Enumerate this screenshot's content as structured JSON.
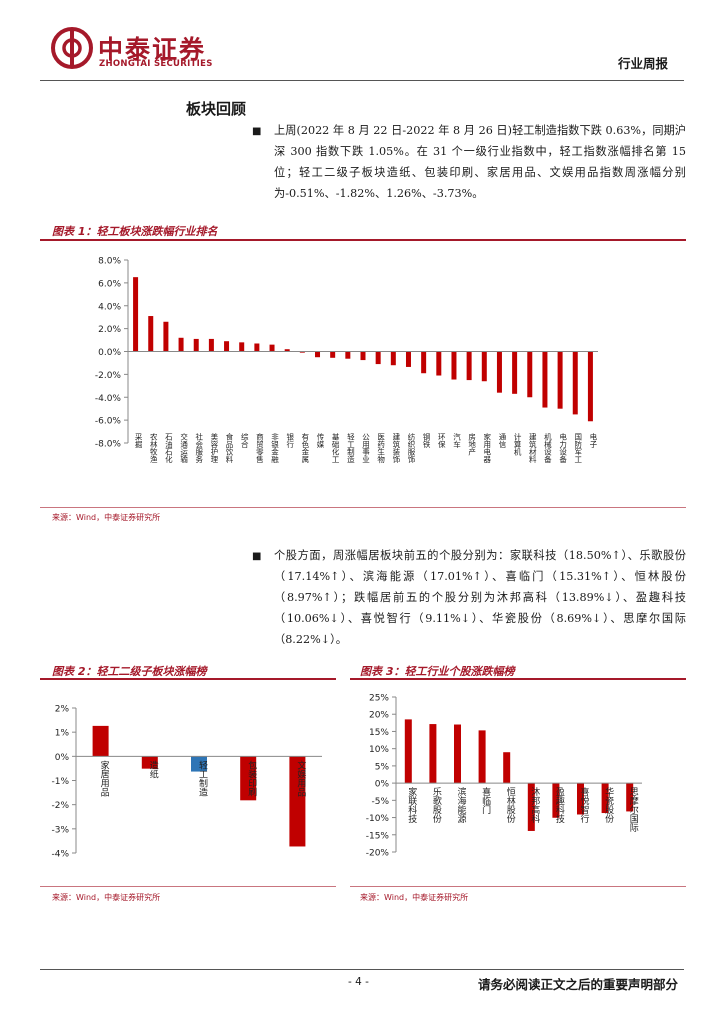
{
  "header": {
    "company_cn": "中泰证券",
    "company_en": "ZHONGTAI SECURITIES",
    "doc_type": "行业周报"
  },
  "section_title": "板块回顾",
  "paragraphs": {
    "p1": "上周(2022 年 8 月 22 日-2022 年 8 月 26 日)轻工制造指数下跌 0.63%，同期沪深 300 指数下跌 1.05%。在 31 个一级行业指数中，轻工指数涨幅排名第 15 位；轻工二级子板块造纸、包装印刷、家居用品、文娱用品指数周涨幅分别为-0.51%、-1.82%、1.26%、-3.73%。",
    "p2": "个股方面，周涨幅居板块前五的个股分别为：家联科技（18.50%↑）、乐歌股份（17.14%↑）、滨海能源（17.01%↑）、喜临门（15.31%↑）、恒林股份（8.97%↑）；跌幅居前五的个股分别为沐邦高科（13.89%↓）、盈趣科技（10.06%↓）、喜悦智行（9.11%↓）、华瓷股份（8.69%↓）、思摩尔国际（8.22%↓）。"
  },
  "figures": {
    "fig1": {
      "title": "图表 1：轻工板块涨跌幅行业排名",
      "source": "来源：Wind，中泰证券研究所"
    },
    "fig2": {
      "title": "图表 2：轻工二级子板块涨幅榜",
      "source": "来源：Wind，中泰证券研究所"
    },
    "fig3": {
      "title": "图表 3：轻工行业个股涨跌幅榜",
      "source": "来源：Wind，中泰证券研究所"
    }
  },
  "chart_data": [
    {
      "type": "bar",
      "title": "轻工板块涨跌幅行业排名",
      "categories": [
        "采掘",
        "农林牧渔",
        "石油石化",
        "交通运输",
        "社会服务",
        "美容护理",
        "食品饮料",
        "综合",
        "商贸零售",
        "非银金融",
        "银行",
        "有色金属",
        "传媒",
        "基础化工",
        "轻工制造",
        "公用事业",
        "医药生物",
        "建筑装饰",
        "纺织服饰",
        "钢铁",
        "环保",
        "汽车",
        "房地产",
        "家用电器",
        "通信",
        "计算机",
        "建筑材料",
        "机械设备",
        "电力设备",
        "国防军工",
        "电子"
      ],
      "values": [
        6.5,
        3.1,
        2.6,
        1.2,
        1.1,
        1.1,
        0.9,
        0.8,
        0.7,
        0.6,
        0.2,
        -0.1,
        -0.5,
        -0.55,
        -0.63,
        -0.75,
        -1.1,
        -1.2,
        -1.35,
        -1.9,
        -2.1,
        -2.45,
        -2.5,
        -2.6,
        -3.6,
        -3.7,
        -4.0,
        -4.9,
        -5.0,
        -5.5,
        -6.1
      ],
      "y_ticks": [
        "8.0%",
        "6.0%",
        "4.0%",
        "2.0%",
        "0.0%",
        "-2.0%",
        "-4.0%",
        "-6.0%",
        "-8.0%"
      ],
      "ylim": [
        -8,
        8
      ],
      "color": "#c00000"
    },
    {
      "type": "bar",
      "title": "轻工二级子板块涨幅榜",
      "categories": [
        "家居用品",
        "造纸",
        "轻工制造",
        "包装印刷",
        "文娱用品"
      ],
      "values": [
        1.26,
        -0.51,
        -0.63,
        -1.82,
        -3.73
      ],
      "y_ticks": [
        "2%",
        "1%",
        "0%",
        "-1%",
        "-2%",
        "-3%",
        "-4%"
      ],
      "ylim": [
        -4,
        2
      ],
      "colors": [
        "#c00000",
        "#c00000",
        "#2e75b6",
        "#c00000",
        "#c00000"
      ]
    },
    {
      "type": "bar",
      "title": "轻工行业个股涨跌幅榜",
      "categories": [
        "家联科技",
        "乐歌股份",
        "滨海能源",
        "喜临门",
        "恒林股份",
        "沐邦高科",
        "盈趣科技",
        "喜悦智行",
        "华瓷股份",
        "思摩尔国际"
      ],
      "values": [
        18.5,
        17.14,
        17.01,
        15.31,
        8.97,
        -13.89,
        -10.06,
        -9.11,
        -8.69,
        -8.22
      ],
      "y_ticks": [
        "25%",
        "20%",
        "15%",
        "10%",
        "5%",
        "0%",
        "-5%",
        "-10%",
        "-15%",
        "-20%"
      ],
      "ylim": [
        -20,
        25
      ],
      "color": "#c00000"
    }
  ],
  "footer": {
    "page": "- 4 -",
    "disclaimer": "请务必阅读正文之后的重要声明部分"
  }
}
